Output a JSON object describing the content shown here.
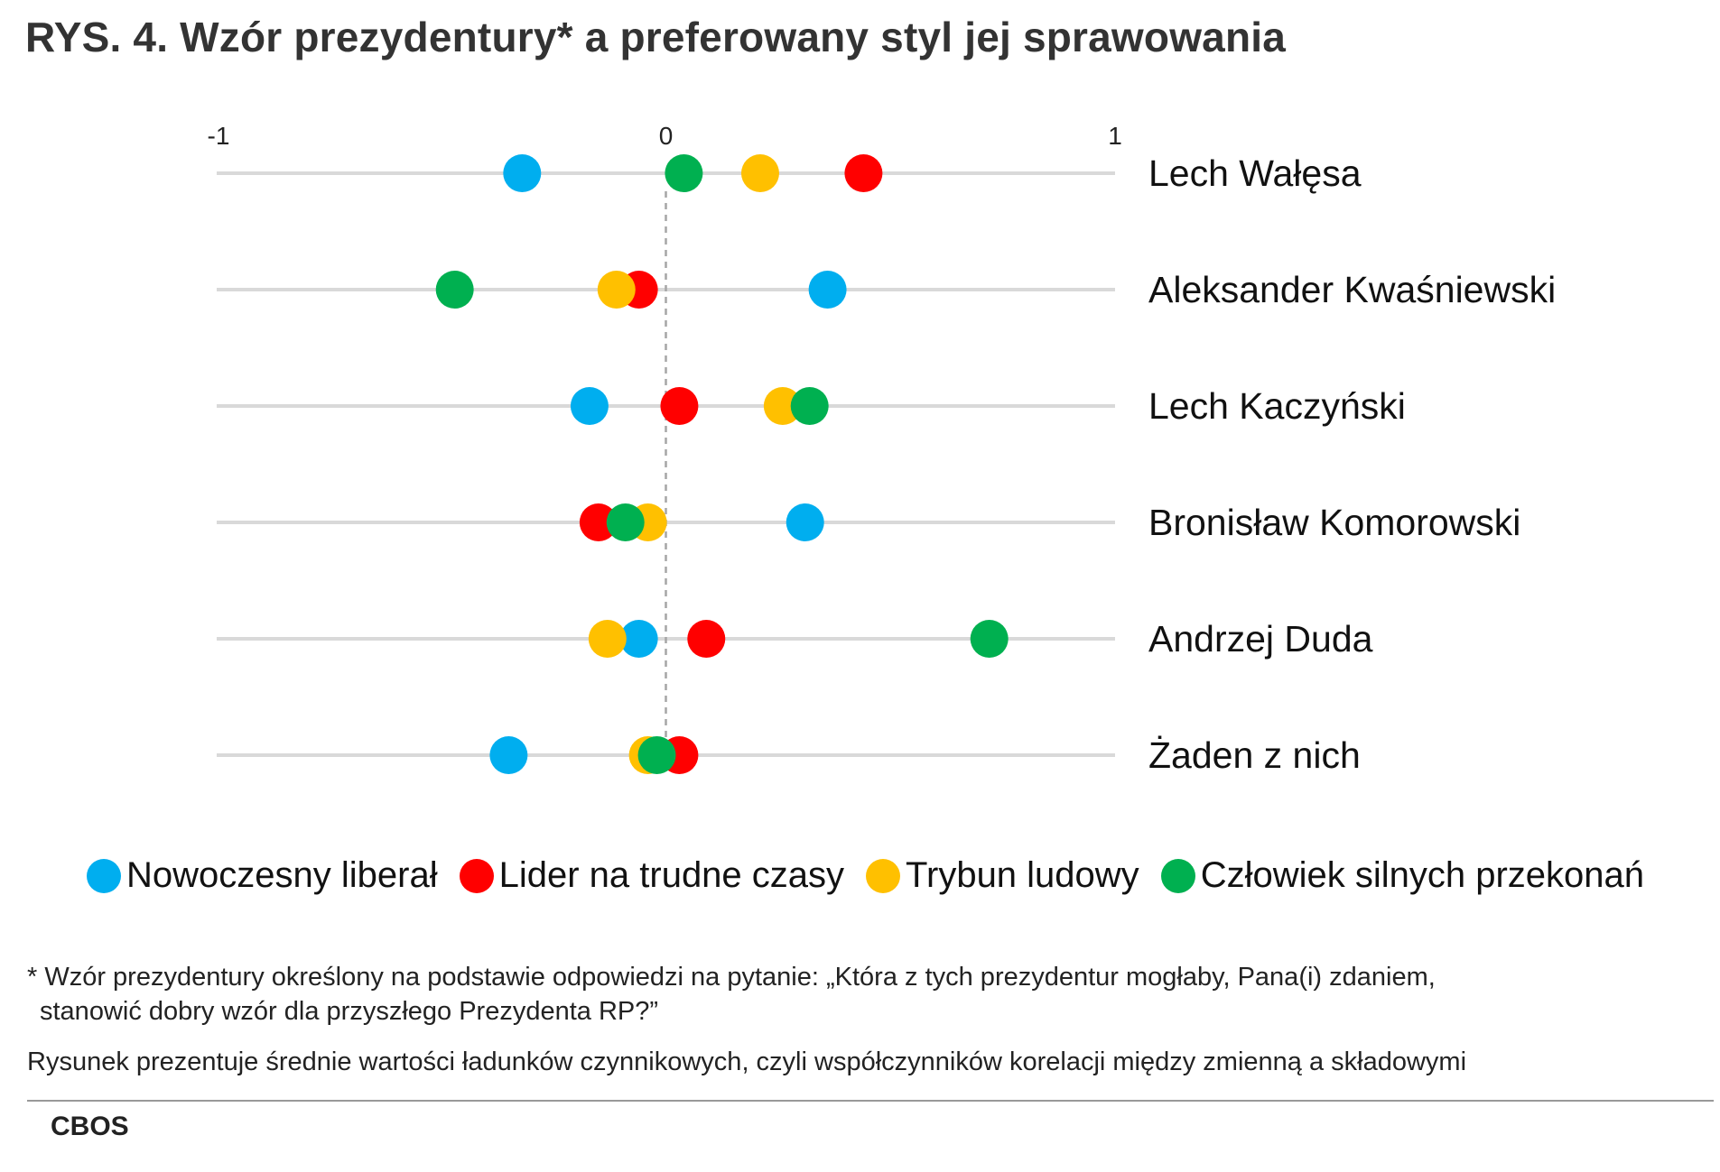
{
  "title": "RYS. 4. Wzór prezydentury* a preferowany styl jej sprawowania",
  "chart_data": {
    "type": "scatter",
    "xlim": [
      -1,
      1
    ],
    "x_ticks": [
      "-1",
      "0",
      "1"
    ],
    "x_tick_values": [
      -1,
      0,
      1
    ],
    "categories": [
      "Lech Wałęsa",
      "Aleksander Kwaśniewski",
      "Lech Kaczyński",
      "Bronisław Komorowski",
      "Andrzej Duda",
      "Żaden z nich"
    ],
    "series": [
      {
        "name": "Nowoczesny liberał",
        "color": "#00AEEF",
        "values": [
          -0.32,
          0.36,
          -0.17,
          0.31,
          -0.06,
          -0.35
        ]
      },
      {
        "name": "Lider na trudne czasy",
        "color": "#FF0000",
        "values": [
          0.44,
          -0.06,
          0.03,
          -0.15,
          0.09,
          0.03
        ]
      },
      {
        "name": "Trybun ludowy",
        "color": "#FFC000",
        "values": [
          0.21,
          -0.11,
          0.26,
          -0.04,
          -0.13,
          -0.04
        ]
      },
      {
        "name": "Człowiek silnych przekonań",
        "color": "#00B050",
        "values": [
          0.04,
          -0.47,
          0.32,
          -0.09,
          0.72,
          -0.02
        ]
      }
    ],
    "legend_position": "bottom",
    "zero_line": "dashed"
  },
  "footnote": {
    "line1": "* Wzór prezydentury określony na podstawie odpowiedzi na pytanie: „Która z tych prezydentur mogłaby, Pana(i) zdaniem,",
    "line2": "stanowić dobry wzór dla przyszłego Prezydenta RP?”"
  },
  "note": "Rysunek prezentuje średnie wartości ładunków czynnikowych, czyli współczynników korelacji między zmienną a składowymi",
  "source": "CBOS"
}
